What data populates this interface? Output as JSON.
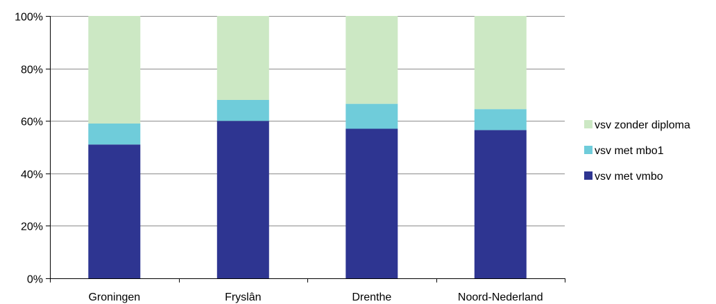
{
  "chart_data": {
    "type": "bar",
    "stacked": true,
    "percent": true,
    "title": "",
    "xlabel": "",
    "ylabel": "",
    "categories": [
      "Groningen",
      "Fryslân",
      "Drenthe",
      "Noord-Nederland"
    ],
    "ylim": [
      0,
      100
    ],
    "yticks": [
      0,
      20,
      40,
      60,
      80,
      100
    ],
    "ytick_labels": [
      "0%",
      "20%",
      "40%",
      "60%",
      "80%",
      "100%"
    ],
    "grid": true,
    "legend_position": "right",
    "series": [
      {
        "name": "vsv met vmbo",
        "color": "#2E3591",
        "values": [
          51,
          60,
          57,
          56.5
        ]
      },
      {
        "name": "vsv met mbo1",
        "color": "#6FCCDA",
        "values": [
          8,
          8,
          9.5,
          8
        ]
      },
      {
        "name": "vsv zonder diploma",
        "color": "#CCE8C4",
        "values": [
          41,
          32,
          33.5,
          35.5
        ]
      }
    ],
    "legend_order": [
      "vsv zonder diploma",
      "vsv met mbo1",
      "vsv met vmbo"
    ]
  }
}
